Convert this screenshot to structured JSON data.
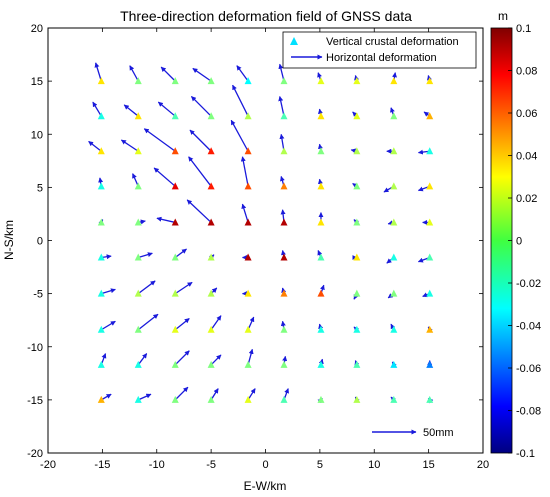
{
  "chart_data": {
    "type": "scatter",
    "title": "Three-direction deformation field of GNSS data",
    "xlabel": "E-W/km",
    "ylabel": "N-S/km",
    "xlim": [
      -20,
      20
    ],
    "ylim": [
      -20,
      20
    ],
    "xticks": [
      "-20",
      "-15",
      "-10",
      "-5",
      "0",
      "5",
      "10",
      "15",
      "20"
    ],
    "yticks": [
      "20",
      "15",
      "10",
      "5",
      "0",
      "-5",
      "-10",
      "-15",
      "-20"
    ],
    "legend": {
      "position": "top-right",
      "vertical_label": "Vertical crustal deformation",
      "horizontal_label": "Horizontal deformation"
    },
    "scale_bar_label": "50mm",
    "scale_bar_mm": 50,
    "colorbar": {
      "unit": "m",
      "range": [
        -0.1,
        0.1
      ],
      "ticks": [
        "0.1",
        "0.08",
        "0.06",
        "0.04",
        "0.02",
        "0",
        "-0.02",
        "-0.04",
        "-0.06",
        "-0.08",
        "-0.1"
      ],
      "colormap": "jet"
    },
    "arrow_color": "#1a1adb",
    "grid": false,
    "stations": [
      {
        "x": -15.1,
        "y": 15,
        "dx": -4,
        "dy": 13,
        "v": 0.03
      },
      {
        "x": -11.7,
        "y": 15,
        "dx": -6,
        "dy": 11,
        "v": 0.0
      },
      {
        "x": -8.3,
        "y": 15,
        "dx": -10,
        "dy": 10,
        "v": 0.0
      },
      {
        "x": -5,
        "y": 15,
        "dx": -13,
        "dy": 9,
        "v": 0.0
      },
      {
        "x": -1.6,
        "y": 15,
        "dx": -8,
        "dy": 11,
        "v": -0.025
      },
      {
        "x": 1.7,
        "y": 15,
        "dx": -3,
        "dy": 12,
        "v": 0.0
      },
      {
        "x": 5.1,
        "y": 15,
        "dx": -2,
        "dy": 6,
        "v": 0.02
      },
      {
        "x": 8.4,
        "y": 15,
        "dx": -1,
        "dy": 4,
        "v": 0.02
      },
      {
        "x": 11.8,
        "y": 15,
        "dx": 1,
        "dy": 6,
        "v": 0.03
      },
      {
        "x": 15.1,
        "y": 15,
        "dx": -1,
        "dy": 4,
        "v": 0.03
      },
      {
        "x": -15.1,
        "y": 11.7,
        "dx": -6,
        "dy": 10,
        "v": -0.02
      },
      {
        "x": -11.7,
        "y": 11.7,
        "dx": -10,
        "dy": 8,
        "v": 0.03
      },
      {
        "x": -8.3,
        "y": 11.7,
        "dx": -12,
        "dy": 10,
        "v": -0.01
      },
      {
        "x": -5,
        "y": 11.7,
        "dx": -14,
        "dy": 14,
        "v": 0.0
      },
      {
        "x": -1.6,
        "y": 11.7,
        "dx": -11,
        "dy": 22,
        "v": 0.01
      },
      {
        "x": 1.7,
        "y": 11.7,
        "dx": -3,
        "dy": 14,
        "v": -0.01
      },
      {
        "x": 5.1,
        "y": 11.7,
        "dx": -1,
        "dy": 5,
        "v": 0.03
      },
      {
        "x": 8.4,
        "y": 11.7,
        "dx": -3,
        "dy": 3,
        "v": 0.02
      },
      {
        "x": 11.8,
        "y": 11.7,
        "dx": -2,
        "dy": 6,
        "v": 0.0
      },
      {
        "x": 15.1,
        "y": 11.7,
        "dx": -4,
        "dy": 3,
        "v": 0.04
      },
      {
        "x": -15.1,
        "y": 8.4,
        "dx": -9,
        "dy": 7,
        "v": 0.03
      },
      {
        "x": -11.7,
        "y": 8.4,
        "dx": -12,
        "dy": 8,
        "v": 0.02
      },
      {
        "x": -8.3,
        "y": 8.4,
        "dx": -22,
        "dy": 16,
        "v": 0.06
      },
      {
        "x": -5,
        "y": 8.4,
        "dx": -15,
        "dy": 15,
        "v": 0.07
      },
      {
        "x": -1.6,
        "y": 8.4,
        "dx": -12,
        "dy": 22,
        "v": 0.06
      },
      {
        "x": 1.7,
        "y": 8.4,
        "dx": -2,
        "dy": 12,
        "v": 0.01
      },
      {
        "x": 5.1,
        "y": 8.4,
        "dx": -1,
        "dy": 5,
        "v": 0.0
      },
      {
        "x": 8.4,
        "y": 8.4,
        "dx": -4,
        "dy": 1,
        "v": 0.01
      },
      {
        "x": 11.8,
        "y": 8.4,
        "dx": -5,
        "dy": 0,
        "v": 0.01
      },
      {
        "x": 15.1,
        "y": 8.4,
        "dx": -8,
        "dy": -1,
        "v": -0.02
      },
      {
        "x": -15.1,
        "y": 5.1,
        "dx": -1,
        "dy": 6,
        "v": -0.02
      },
      {
        "x": -11.7,
        "y": 5.1,
        "dx": -4,
        "dy": 9,
        "v": 0.0
      },
      {
        "x": -8.3,
        "y": 5.1,
        "dx": -15,
        "dy": 13,
        "v": 0.08
      },
      {
        "x": -5,
        "y": 5.1,
        "dx": -16,
        "dy": 21,
        "v": 0.07
      },
      {
        "x": -1.6,
        "y": 5.1,
        "dx": -4,
        "dy": 21,
        "v": 0.06
      },
      {
        "x": 1.7,
        "y": 5.1,
        "dx": -2,
        "dy": 7,
        "v": 0.05
      },
      {
        "x": 5.1,
        "y": 5.1,
        "dx": -1,
        "dy": 5,
        "v": 0.03
      },
      {
        "x": 8.4,
        "y": 5.1,
        "dx": -3,
        "dy": 2,
        "v": 0.0
      },
      {
        "x": 11.8,
        "y": 5.1,
        "dx": -7,
        "dy": -4,
        "v": 0.01
      },
      {
        "x": 15.1,
        "y": 5.1,
        "dx": -8,
        "dy": -3,
        "v": 0.03
      },
      {
        "x": -15.1,
        "y": 1.7,
        "dx": 1,
        "dy": 2,
        "v": 0.0
      },
      {
        "x": -11.7,
        "y": 1.7,
        "dx": 5,
        "dy": 1,
        "v": 0.0
      },
      {
        "x": -8.3,
        "y": 1.7,
        "dx": -13,
        "dy": 3,
        "v": 0.09
      },
      {
        "x": -5,
        "y": 1.7,
        "dx": -17,
        "dy": 16,
        "v": 0.09
      },
      {
        "x": -1.6,
        "y": 1.7,
        "dx": -4,
        "dy": 13,
        "v": 0.09
      },
      {
        "x": 1.7,
        "y": 1.7,
        "dx": -1,
        "dy": 9,
        "v": 0.09
      },
      {
        "x": 5.1,
        "y": 1.7,
        "dx": 0,
        "dy": 7,
        "v": 0.03
      },
      {
        "x": 8.4,
        "y": 1.7,
        "dx": -2,
        "dy": 2,
        "v": 0.0
      },
      {
        "x": 11.8,
        "y": 1.7,
        "dx": -4,
        "dy": -1,
        "v": 0.01
      },
      {
        "x": 15.1,
        "y": 1.7,
        "dx": -5,
        "dy": 0,
        "v": 0.02
      },
      {
        "x": -15.1,
        "y": -1.6,
        "dx": 7,
        "dy": 1,
        "v": -0.02
      },
      {
        "x": -11.7,
        "y": -1.6,
        "dx": 10,
        "dy": 3,
        "v": 0.0
      },
      {
        "x": -8.3,
        "y": -1.6,
        "dx": 8,
        "dy": 6,
        "v": 0.0
      },
      {
        "x": -5,
        "y": -1.6,
        "dx": 2,
        "dy": 2,
        "v": 0.01
      },
      {
        "x": -1.6,
        "y": -1.6,
        "dx": -4,
        "dy": 0,
        "v": 0.09
      },
      {
        "x": 1.7,
        "y": -1.6,
        "dx": -1,
        "dy": 5,
        "v": 0.09
      },
      {
        "x": 5.1,
        "y": -1.6,
        "dx": -2,
        "dy": 5,
        "v": -0.01
      },
      {
        "x": 8.4,
        "y": -1.6,
        "dx": 0,
        "dy": 0,
        "v": 0.03
      },
      {
        "x": 11.8,
        "y": -1.6,
        "dx": -5,
        "dy": -4,
        "v": -0.02
      },
      {
        "x": 15.1,
        "y": -1.6,
        "dx": -8,
        "dy": -3,
        "v": -0.01
      },
      {
        "x": -15.1,
        "y": -5,
        "dx": 10,
        "dy": 3,
        "v": -0.02
      },
      {
        "x": -11.7,
        "y": -5,
        "dx": 12,
        "dy": 9,
        "v": 0.01
      },
      {
        "x": -8.3,
        "y": -5,
        "dx": 12,
        "dy": 8,
        "v": 0.01
      },
      {
        "x": -5,
        "y": -5,
        "dx": 4,
        "dy": 4,
        "v": 0.01
      },
      {
        "x": -1.6,
        "y": -5,
        "dx": -4,
        "dy": 0,
        "v": 0.03
      },
      {
        "x": 1.7,
        "y": -5,
        "dx": -1,
        "dy": 4,
        "v": 0.05
      },
      {
        "x": 5.1,
        "y": -5,
        "dx": 2,
        "dy": 6,
        "v": 0.06
      },
      {
        "x": 8.4,
        "y": -5,
        "dx": -2,
        "dy": -4,
        "v": 0.0
      },
      {
        "x": 11.8,
        "y": -5,
        "dx": -4,
        "dy": -3,
        "v": 0.0
      },
      {
        "x": 15.1,
        "y": -5,
        "dx": -5,
        "dy": -2,
        "v": -0.02
      },
      {
        "x": -15.1,
        "y": -8.4,
        "dx": 10,
        "dy": 6,
        "v": -0.02
      },
      {
        "x": -11.7,
        "y": -8.4,
        "dx": 14,
        "dy": 11,
        "v": 0.0
      },
      {
        "x": -8.3,
        "y": -8.4,
        "dx": 10,
        "dy": 8,
        "v": 0.02
      },
      {
        "x": -5,
        "y": -8.4,
        "dx": 7,
        "dy": 10,
        "v": 0.02
      },
      {
        "x": -1.6,
        "y": -8.4,
        "dx": 4,
        "dy": 9,
        "v": 0.02
      },
      {
        "x": 1.7,
        "y": -8.4,
        "dx": -1,
        "dy": 6,
        "v": 0.0
      },
      {
        "x": 5.1,
        "y": -8.4,
        "dx": -1,
        "dy": 4,
        "v": -0.02
      },
      {
        "x": 8.4,
        "y": -8.4,
        "dx": -2,
        "dy": 2,
        "v": -0.02
      },
      {
        "x": 11.8,
        "y": -8.4,
        "dx": -2,
        "dy": 4,
        "v": -0.02
      },
      {
        "x": 15.1,
        "y": -8.4,
        "dx": -1,
        "dy": 2,
        "v": 0.04
      },
      {
        "x": -15.1,
        "y": -11.7,
        "dx": 3,
        "dy": 8,
        "v": -0.02
      },
      {
        "x": -11.7,
        "y": -11.7,
        "dx": 6,
        "dy": 8,
        "v": -0.02
      },
      {
        "x": -8.3,
        "y": -11.7,
        "dx": 10,
        "dy": 10,
        "v": 0.0
      },
      {
        "x": -5,
        "y": -11.7,
        "dx": 7,
        "dy": 7,
        "v": 0.0
      },
      {
        "x": -1.6,
        "y": -11.7,
        "dx": 3,
        "dy": 11,
        "v": 0.0
      },
      {
        "x": 1.7,
        "y": -11.7,
        "dx": 1,
        "dy": 6,
        "v": 0.0
      },
      {
        "x": 5.1,
        "y": -11.7,
        "dx": 1,
        "dy": 4,
        "v": -0.02
      },
      {
        "x": 8.4,
        "y": -11.7,
        "dx": -1,
        "dy": 3,
        "v": -0.01
      },
      {
        "x": 11.8,
        "y": -11.7,
        "dx": -1,
        "dy": 2,
        "v": -0.03
      },
      {
        "x": 15.1,
        "y": -11.7,
        "dx": 0,
        "dy": 3,
        "v": -0.05
      },
      {
        "x": -15.1,
        "y": -15,
        "dx": 7,
        "dy": 4,
        "v": 0.04
      },
      {
        "x": -11.7,
        "y": -15,
        "dx": 9,
        "dy": 4,
        "v": -0.02
      },
      {
        "x": -8.3,
        "y": -15,
        "dx": 9,
        "dy": 9,
        "v": 0.0
      },
      {
        "x": -5,
        "y": -15,
        "dx": 5,
        "dy": 8,
        "v": 0.0
      },
      {
        "x": -1.6,
        "y": -15,
        "dx": 5,
        "dy": 8,
        "v": 0.02
      },
      {
        "x": 1.7,
        "y": -15,
        "dx": 3,
        "dy": 8,
        "v": -0.01
      },
      {
        "x": 5.1,
        "y": -15,
        "dx": 1,
        "dy": 1,
        "v": 0.0
      },
      {
        "x": 8.4,
        "y": -15,
        "dx": -1,
        "dy": 2,
        "v": 0.01
      },
      {
        "x": 11.8,
        "y": -15,
        "dx": -2,
        "dy": 2,
        "v": -0.01
      },
      {
        "x": 15.1,
        "y": -15,
        "dx": -1,
        "dy": 1,
        "v": -0.01
      }
    ]
  }
}
